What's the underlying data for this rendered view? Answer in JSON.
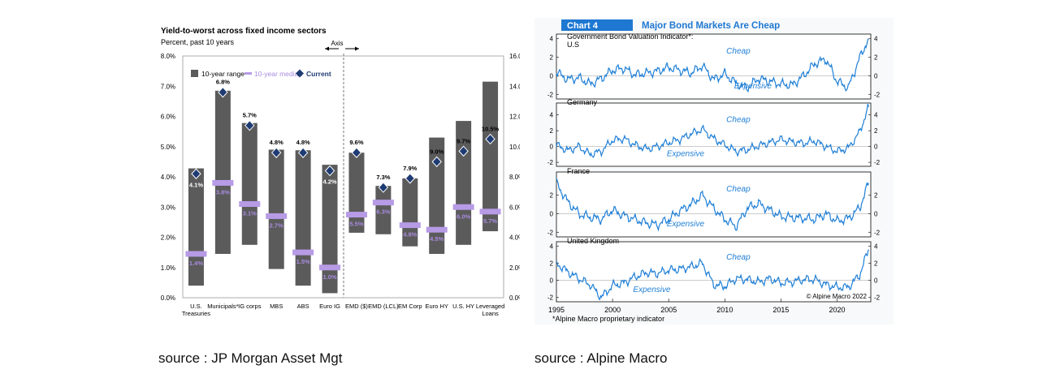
{
  "left_source": "source :  JP Morgan Asset Mgt",
  "right_source": "source :  Alpine Macro",
  "chart_data": [
    {
      "type": "bar",
      "title": "Yield-to-worst across fixed income sectors",
      "subtitle": "Percent, past 10 years",
      "axis_note": "Axis",
      "legend": {
        "range": "10-year range",
        "median": "10-year median",
        "current": "Current",
        "position": "top-left"
      },
      "colors": {
        "bar": "#5b5b5b",
        "median": "#b79be6",
        "current": "#1f3b73",
        "median_label": "#a98be0"
      },
      "categories": [
        "U.S. Treasuries",
        "Municipals*",
        "IG corps",
        "MBS",
        "ABS",
        "Euro IG",
        "EMD ($)",
        "EMD (LCL)",
        "EM Corp",
        "Euro HY",
        "U.S. HY",
        "Leveraged Loans"
      ],
      "axis_assignment": [
        "left",
        "left",
        "left",
        "left",
        "left",
        "left",
        "right",
        "right",
        "right",
        "right",
        "right",
        "right"
      ],
      "range_low": [
        0.4,
        1.45,
        1.75,
        0.95,
        0.4,
        0.15,
        4.3,
        4.2,
        3.4,
        2.9,
        3.5,
        4.4
      ],
      "range_high": [
        4.28,
        6.85,
        5.78,
        4.9,
        4.88,
        4.4,
        9.6,
        7.4,
        7.9,
        10.6,
        11.7,
        14.3
      ],
      "median": [
        1.45,
        3.8,
        3.1,
        2.7,
        1.5,
        1.0,
        5.5,
        6.3,
        4.8,
        4.5,
        6.0,
        5.7
      ],
      "current": [
        4.1,
        6.8,
        5.7,
        4.8,
        4.8,
        4.2,
        9.6,
        7.3,
        7.9,
        9.0,
        9.7,
        10.5
      ],
      "current_labels": [
        "4.1%",
        "6.8%",
        "5.7%",
        "4.8%",
        "4.8%",
        "4.2%",
        "9.6%",
        "7.3%",
        "7.9%",
        "9.0%",
        "9.7%",
        "10.5%"
      ],
      "median_labels": [
        "1.4%",
        "3.8%",
        "3.1%",
        "2.7%",
        "1.5%",
        "1.0%",
        "5.5%",
        "6.3%",
        "4.8%",
        "4.5%",
        "6.0%",
        "5.7%"
      ],
      "left_ticks": [
        "0.0%",
        "1.0%",
        "2.0%",
        "3.0%",
        "4.0%",
        "5.0%",
        "6.0%",
        "7.0%",
        "8.0%"
      ],
      "right_ticks": [
        "0.0%",
        "2.0%",
        "4.0%",
        "6.0%",
        "8.0%",
        "10.0%",
        "12.0%",
        "14.0%",
        "16.0%"
      ],
      "left_ylim": [
        0,
        8
      ],
      "right_ylim": [
        0,
        16
      ]
    },
    {
      "type": "line",
      "chart_label": "Chart 4",
      "title": "Major Bond Markets Are Cheap",
      "header_colors": {
        "label_bg": "#1e78d2",
        "title_text": "#1e78d2"
      },
      "line_color": "#1f7fd6",
      "footnote": "*Alpine Macro proprietary indicator",
      "copyright": "© Alpine Macro 2022",
      "x_ticks": [
        "1995",
        "2000",
        "2005",
        "2010",
        "2015",
        "2020"
      ],
      "xlim": [
        1995,
        2023
      ],
      "panels": [
        {
          "name": "Government Bond Valuation Indicator*: U.S",
          "ylim": [
            -2.5,
            4.5
          ],
          "ticks": [
            "4",
            "2",
            "0",
            "-2"
          ],
          "cheap": "Cheap",
          "expensive": "Expensive",
          "shape": [
            [
              1995,
              0.4
            ],
            [
              1996,
              -0.4
            ],
            [
              1997,
              -0.2
            ],
            [
              1998,
              -0.9
            ],
            [
              1999,
              -0.3
            ],
            [
              2000,
              0.6
            ],
            [
              2001,
              0.8
            ],
            [
              2002,
              0.1
            ],
            [
              2003,
              0.3
            ],
            [
              2004,
              0.5
            ],
            [
              2005,
              0.9
            ],
            [
              2006,
              0.6
            ],
            [
              2007,
              0.3
            ],
            [
              2008,
              1.1
            ],
            [
              2009,
              -0.4
            ],
            [
              2010,
              0.2
            ],
            [
              2011,
              -0.8
            ],
            [
              2012,
              -1.3
            ],
            [
              2013,
              -0.3
            ],
            [
              2014,
              -0.6
            ],
            [
              2015,
              -0.9
            ],
            [
              2016,
              -1.0
            ],
            [
              2017,
              0.0
            ],
            [
              2018,
              1.3
            ],
            [
              2019,
              1.8
            ],
            [
              2020,
              -0.6
            ],
            [
              2021,
              -1.3
            ],
            [
              2022,
              1.9
            ],
            [
              2022.8,
              4.0
            ]
          ]
        },
        {
          "name": "Germany",
          "ylim": [
            -2.5,
            5.5
          ],
          "ticks": [
            "4",
            "2",
            "0",
            "-2"
          ],
          "cheap": "Cheap",
          "expensive": "Expensive",
          "shape": [
            [
              1995,
              0.2
            ],
            [
              1996,
              -0.5
            ],
            [
              1997,
              0.0
            ],
            [
              1998,
              -1.0
            ],
            [
              1999,
              -0.6
            ],
            [
              2000,
              0.8
            ],
            [
              2001,
              1.0
            ],
            [
              2002,
              0.2
            ],
            [
              2003,
              -0.3
            ],
            [
              2004,
              0.0
            ],
            [
              2005,
              0.5
            ],
            [
              2006,
              0.9
            ],
            [
              2007,
              1.6
            ],
            [
              2008,
              2.2
            ],
            [
              2009,
              1.0
            ],
            [
              2010,
              0.2
            ],
            [
              2011,
              -0.6
            ],
            [
              2012,
              -0.4
            ],
            [
              2013,
              0.1
            ],
            [
              2014,
              0.5
            ],
            [
              2015,
              0.9
            ],
            [
              2016,
              0.6
            ],
            [
              2017,
              0.4
            ],
            [
              2018,
              0.7
            ],
            [
              2019,
              0.0
            ],
            [
              2020,
              -0.6
            ],
            [
              2021,
              -0.2
            ],
            [
              2022,
              1.8
            ],
            [
              2022.8,
              5.0
            ]
          ]
        },
        {
          "name": "France",
          "ylim": [
            -2.5,
            4.5
          ],
          "ticks": [
            "2",
            "0",
            "-2"
          ],
          "cheap": "Cheap",
          "expensive": "Expensive",
          "shape": [
            [
              1995,
              3.3
            ],
            [
              1996,
              1.3
            ],
            [
              1997,
              0.0
            ],
            [
              1998,
              -0.4
            ],
            [
              1999,
              -0.6
            ],
            [
              2000,
              0.4
            ],
            [
              2001,
              -0.2
            ],
            [
              2002,
              -0.6
            ],
            [
              2003,
              -1.0
            ],
            [
              2004,
              -1.2
            ],
            [
              2005,
              -0.6
            ],
            [
              2006,
              0.3
            ],
            [
              2007,
              1.0
            ],
            [
              2008,
              2.0
            ],
            [
              2009,
              0.6
            ],
            [
              2010,
              -0.6
            ],
            [
              2011,
              -1.4
            ],
            [
              2012,
              0.6
            ],
            [
              2013,
              1.1
            ],
            [
              2014,
              0.4
            ],
            [
              2015,
              -0.3
            ],
            [
              2016,
              -0.4
            ],
            [
              2017,
              -0.5
            ],
            [
              2018,
              -0.6
            ],
            [
              2019,
              0.0
            ],
            [
              2020,
              -0.8
            ],
            [
              2021,
              -0.5
            ],
            [
              2022,
              0.6
            ],
            [
              2022.8,
              3.3
            ]
          ]
        },
        {
          "name": "United Kingdom",
          "ylim": [
            -2.5,
            4.5
          ],
          "ticks": [
            "4",
            "2",
            "0",
            "-2"
          ],
          "cheap": "Cheap",
          "expensive": "Expensive",
          "shape": [
            [
              1995,
              2.0
            ],
            [
              1996,
              1.0
            ],
            [
              1997,
              0.2
            ],
            [
              1998,
              -0.5
            ],
            [
              1999,
              -2.0
            ],
            [
              2000,
              -0.6
            ],
            [
              2001,
              -0.3
            ],
            [
              2002,
              0.4
            ],
            [
              2003,
              0.9
            ],
            [
              2004,
              0.8
            ],
            [
              2005,
              1.2
            ],
            [
              2006,
              1.3
            ],
            [
              2007,
              1.6
            ],
            [
              2008,
              2.0
            ],
            [
              2009,
              -0.5
            ],
            [
              2010,
              -0.7
            ],
            [
              2011,
              0.2
            ],
            [
              2012,
              0.1
            ],
            [
              2013,
              -0.2
            ],
            [
              2014,
              0.2
            ],
            [
              2015,
              -0.3
            ],
            [
              2016,
              -0.2
            ],
            [
              2017,
              0.1
            ],
            [
              2018,
              0.1
            ],
            [
              2019,
              -0.5
            ],
            [
              2020,
              -0.8
            ],
            [
              2021,
              -0.8
            ],
            [
              2022,
              0.6
            ],
            [
              2022.8,
              3.6
            ]
          ]
        }
      ]
    }
  ]
}
